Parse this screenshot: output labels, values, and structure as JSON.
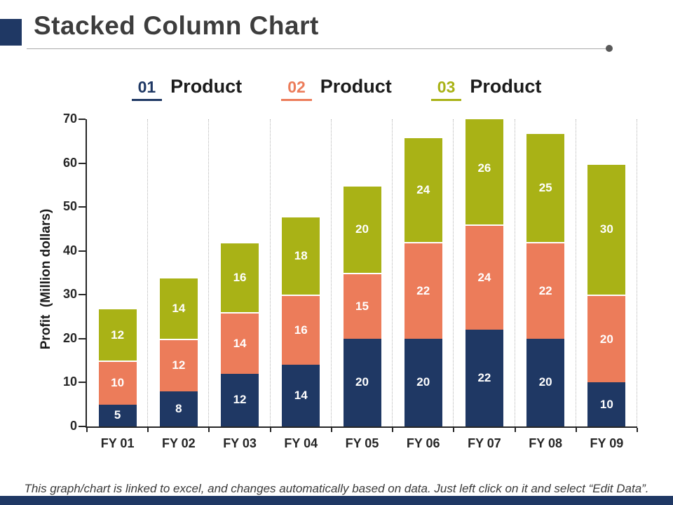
{
  "header": {
    "title": "Stacked Column Chart"
  },
  "colors": {
    "accent_navy": "#1F3864",
    "series_navy": "#1F3864",
    "series_coral": "#EC7C5A",
    "series_olive": "#A9B216"
  },
  "legend": [
    {
      "number": "01",
      "label": "Product",
      "color": "#1F3864"
    },
    {
      "number": "02",
      "label": "Product",
      "color": "#EC7C5A"
    },
    {
      "number": "03",
      "label": "Product",
      "color": "#A9B216"
    }
  ],
  "chart_data": {
    "type": "bar",
    "stacked": true,
    "categories": [
      "FY 01",
      "FY 02",
      "FY 03",
      "FY 04",
      "FY 05",
      "FY 06",
      "FY 07",
      "FY 08",
      "FY 09"
    ],
    "series": [
      {
        "name": "Product 01",
        "color": "#1F3864",
        "values": [
          5,
          8,
          12,
          14,
          20,
          20,
          22,
          20,
          10
        ]
      },
      {
        "name": "Product 02",
        "color": "#EC7C5A",
        "values": [
          10,
          12,
          14,
          16,
          15,
          22,
          24,
          22,
          20
        ]
      },
      {
        "name": "Product 03",
        "color": "#A9B216",
        "values": [
          12,
          14,
          16,
          18,
          20,
          24,
          26,
          25,
          30
        ]
      }
    ],
    "title": "",
    "xlabel": "",
    "ylabel": "Profit  (Million dollars)",
    "ylim": [
      0,
      70
    ],
    "yticks": [
      0,
      10,
      20,
      30,
      40,
      50,
      60,
      70
    ],
    "grid": "vertical-dotted",
    "data_labels": true,
    "legend_position": "top"
  },
  "footer": {
    "note": "This graph/chart is linked to excel, and changes automatically based on data. Just left click on it and select “Edit Data”."
  }
}
